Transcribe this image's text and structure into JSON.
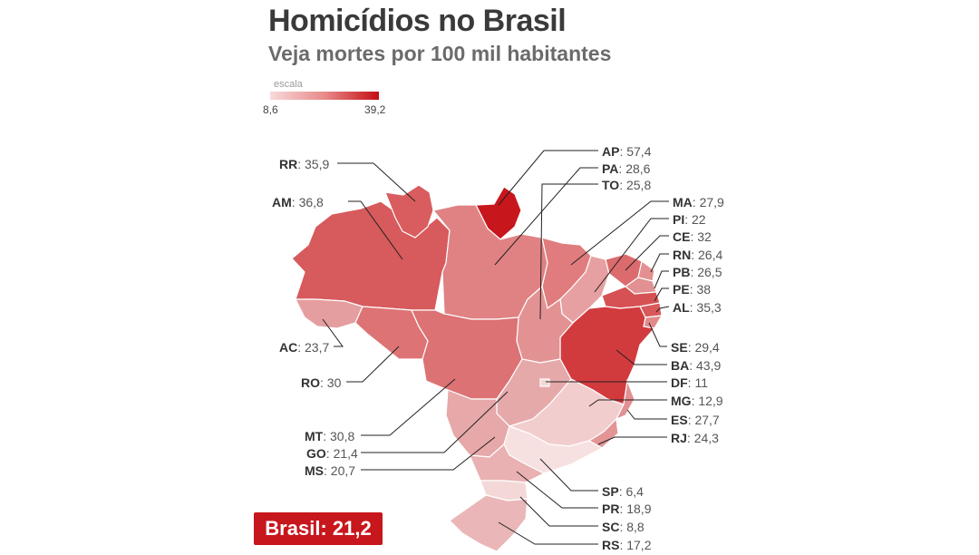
{
  "title": "Homicídios no Brasil",
  "subtitle": "Veja mortes por 100 mil habitantes",
  "scale": {
    "label": "escala",
    "min": "8,6",
    "max": "39,2",
    "min_color": "#f7dada",
    "max_color": "#c40e12"
  },
  "brasil": {
    "label": "Brasil:",
    "value": "21,2",
    "color": "#c8161d"
  },
  "states": {
    "RR": {
      "code": "RR",
      "value": "35,9"
    },
    "AM": {
      "code": "AM",
      "value": "36,8"
    },
    "AC": {
      "code": "AC",
      "value": "23,7"
    },
    "RO": {
      "code": "RO",
      "value": "30"
    },
    "MT": {
      "code": "MT",
      "value": "30,8"
    },
    "GO": {
      "code": "GO",
      "value": "21,4"
    },
    "MS": {
      "code": "MS",
      "value": "20,7"
    },
    "AP": {
      "code": "AP",
      "value": "57,4"
    },
    "PA": {
      "code": "PA",
      "value": "28,6"
    },
    "TO": {
      "code": "TO",
      "value": "25,8"
    },
    "MA": {
      "code": "MA",
      "value": "27,9"
    },
    "PI": {
      "code": "PI",
      "value": "22"
    },
    "CE": {
      "code": "CE",
      "value": "32"
    },
    "RN": {
      "code": "RN",
      "value": "26,4"
    },
    "PB": {
      "code": "PB",
      "value": "26,5"
    },
    "PE": {
      "code": "PE",
      "value": "38"
    },
    "AL": {
      "code": "AL",
      "value": "35,3"
    },
    "SE": {
      "code": "SE",
      "value": "29,4"
    },
    "BA": {
      "code": "BA",
      "value": "43,9"
    },
    "DF": {
      "code": "DF",
      "value": "11"
    },
    "MG": {
      "code": "MG",
      "value": "12,9"
    },
    "ES": {
      "code": "ES",
      "value": "27,7"
    },
    "RJ": {
      "code": "RJ",
      "value": "24,3"
    },
    "SP": {
      "code": "SP",
      "value": "6,4"
    },
    "PR": {
      "code": "PR",
      "value": "18,9"
    },
    "SC": {
      "code": "SC",
      "value": "8,8"
    },
    "RS": {
      "code": "RS",
      "value": "17,2"
    }
  }
}
